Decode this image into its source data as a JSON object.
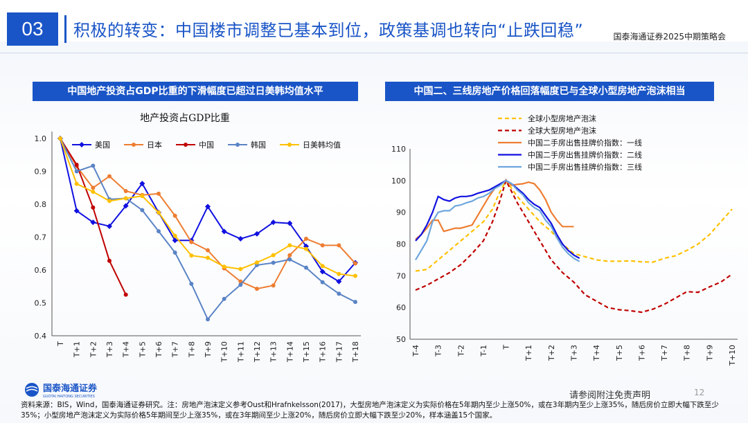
{
  "header": {
    "section_number": "03",
    "title": "积极的转变：中国楼市调整已基本到位，政策基调也转向“止跌回稳”",
    "report_name": "国泰海通证券2025中期策略会"
  },
  "colors": {
    "brand": "#1a55c7"
  },
  "left_panel": {
    "title": "中国地产投资占GDP比重的下滑幅度已超过日美韩均值水平"
  },
  "right_panel": {
    "title": "中国二、三线房地产价格回落幅度已与全球小型房地产泡沫相当"
  },
  "chart_data": [
    {
      "type": "line",
      "title": "地产投资占GDP比重",
      "categories": [
        "T",
        "T+1",
        "T+2",
        "T+3",
        "T+4",
        "T+5",
        "T+6",
        "T+7",
        "T+8",
        "T+9",
        "T+10",
        "T+11",
        "T+12",
        "T+13",
        "T+14",
        "T+15",
        "T+16",
        "T+17",
        "T+18"
      ],
      "ylim": [
        0.4,
        1.0
      ],
      "yticks": [
        "0.4",
        "0.5",
        "0.6",
        "0.7",
        "0.8",
        "0.9",
        "1.0"
      ],
      "legend_position": "top",
      "series": [
        {
          "name": "美国",
          "color": "#1010e0",
          "marker": "diamond",
          "values": [
            1.0,
            0.78,
            0.745,
            0.733,
            0.795,
            0.863,
            0.775,
            0.69,
            0.69,
            0.793,
            0.717,
            0.695,
            0.71,
            0.745,
            0.742,
            0.672,
            0.595,
            0.565,
            0.622
          ]
        },
        {
          "name": "日本",
          "color": "#ee7d31",
          "marker": "circle",
          "values": [
            1.0,
            0.915,
            0.85,
            0.885,
            0.84,
            0.828,
            0.832,
            0.765,
            0.685,
            0.66,
            0.605,
            0.565,
            0.543,
            0.553,
            0.645,
            0.695,
            0.675,
            0.675,
            0.62
          ]
        },
        {
          "name": "中国",
          "color": "#c00000",
          "marker": "circle",
          "values": [
            1.0,
            0.92,
            0.79,
            0.628,
            0.525,
            null,
            null,
            null,
            null,
            null,
            null,
            null,
            null,
            null,
            null,
            null,
            null,
            null,
            null
          ]
        },
        {
          "name": "韩国",
          "color": "#5a84c6",
          "marker": "circle",
          "values": [
            1.0,
            0.9,
            0.917,
            0.815,
            0.818,
            0.782,
            0.718,
            0.653,
            0.558,
            0.45,
            0.512,
            0.555,
            0.615,
            0.622,
            0.632,
            0.607,
            0.563,
            0.528,
            0.503
          ]
        },
        {
          "name": "日美韩均值",
          "color": "#ffc000",
          "marker": "circle",
          "values": [
            1.0,
            0.862,
            0.838,
            0.81,
            0.818,
            0.825,
            0.775,
            0.704,
            0.644,
            0.637,
            0.61,
            0.603,
            0.623,
            0.645,
            0.675,
            0.664,
            0.612,
            0.588,
            0.582
          ]
        }
      ]
    },
    {
      "type": "line",
      "categories": [
        "T-4",
        "T-3",
        "T-2",
        "T-1",
        "T",
        "T+1",
        "T+2",
        "T+3",
        "T+4",
        "T+5",
        "T+6",
        "T+7",
        "T+8",
        "T+9",
        "T+10"
      ],
      "ylim": [
        50,
        110
      ],
      "yticks": [
        "50",
        "60",
        "70",
        "80",
        "90",
        "100",
        "110"
      ],
      "legend_position": "top-left",
      "series": [
        {
          "name": "全球小型房地产泡沫",
          "color": "#ffc000",
          "dash": true,
          "x": [
            0,
            0.5,
            1,
            1.5,
            2,
            2.5,
            3,
            3.4,
            3.7,
            4,
            4.5,
            5,
            5.5,
            6,
            6.5,
            7,
            7.5,
            8,
            8.5,
            9,
            9.5,
            10,
            10.5,
            11,
            11.5,
            12,
            12.5,
            13,
            13.5,
            14
          ],
          "values": [
            71.5,
            72,
            75,
            78,
            81,
            84,
            87,
            91,
            96,
            100,
            95,
            91,
            87,
            84,
            80,
            77,
            76,
            75,
            74.6,
            74.6,
            74.7,
            74.4,
            74.3,
            75.5,
            76.3,
            78,
            80,
            83,
            87,
            91
          ]
        },
        {
          "name": "全球大型房地产泡沫",
          "color": "#c00000",
          "dash": true,
          "x": [
            0,
            0.5,
            1,
            1.5,
            2,
            2.5,
            3,
            3.4,
            3.7,
            4,
            4.5,
            5,
            5.5,
            6,
            6.5,
            7,
            7.5,
            8,
            8.5,
            9,
            9.5,
            10,
            10.5,
            11,
            11.5,
            12,
            12.5,
            13,
            13.5,
            14
          ],
          "values": [
            65.5,
            67,
            69,
            71,
            73.5,
            77,
            81,
            87,
            93,
            100,
            93,
            87,
            81,
            75,
            71,
            68,
            64,
            62,
            60,
            59.3,
            59,
            58.5,
            59.5,
            61,
            63,
            65,
            64.8,
            66.5,
            68,
            70.5
          ]
        },
        {
          "name": "中国二手房出售挂牌价指数：一线",
          "color": "#ee7d31",
          "dash": false,
          "x": [
            0,
            0.25,
            0.5,
            0.75,
            1,
            1.25,
            1.5,
            1.75,
            2,
            2.25,
            2.5,
            2.75,
            3,
            3.25,
            3.5,
            3.75,
            4,
            4.25,
            4.5,
            4.75,
            5,
            5.25,
            5.5,
            5.75,
            6,
            6.25,
            6.5,
            6.75,
            7,
            7.25,
            7.5
          ],
          "values": [
            81.5,
            83,
            85,
            87.5,
            87.5,
            84,
            84.5,
            85,
            85,
            85.5,
            86,
            89,
            92,
            95,
            97.5,
            99,
            100,
            98.5,
            98.8,
            99,
            99.5,
            99,
            97,
            94,
            90,
            87.5,
            85.5,
            85.5,
            85.5,
            null,
            null
          ]
        },
        {
          "name": "中国二手房出售挂牌价指数：二线",
          "color": "#1010e0",
          "dash": false,
          "x": [
            0,
            0.25,
            0.5,
            0.75,
            1,
            1.25,
            1.5,
            1.75,
            2,
            2.25,
            2.5,
            2.75,
            3,
            3.25,
            3.5,
            3.75,
            4,
            4.25,
            4.5,
            4.75,
            5,
            5.25,
            5.5,
            5.75,
            6,
            6.25,
            6.5,
            6.75,
            7,
            7.25,
            7.5
          ],
          "values": [
            81,
            83,
            86,
            90,
            95,
            94,
            93.5,
            94.5,
            95,
            95,
            95.3,
            96,
            96.5,
            97,
            98,
            99,
            100,
            99,
            97.5,
            96,
            94,
            92.5,
            91.5,
            89,
            86.5,
            83,
            80,
            78,
            76.5,
            75.5,
            null
          ]
        },
        {
          "name": "中国二手房出售挂牌价指数：三线",
          "color": "#6ea6dd",
          "dash": false,
          "x": [
            0,
            0.25,
            0.5,
            0.75,
            1,
            1.25,
            1.5,
            1.75,
            2,
            2.25,
            2.5,
            2.75,
            3,
            3.25,
            3.5,
            3.75,
            4,
            4.25,
            4.5,
            4.75,
            5,
            5.25,
            5.5,
            5.75,
            6,
            6.25,
            6.5,
            6.75,
            7,
            7.25,
            7.5
          ],
          "values": [
            75,
            78,
            81,
            87,
            90,
            90.5,
            90.5,
            92,
            92.3,
            93,
            93.5,
            94.5,
            95,
            96,
            97.5,
            98.5,
            100,
            99,
            97,
            95.5,
            93,
            91.5,
            90.5,
            87.5,
            85.5,
            82,
            79,
            77,
            75.5,
            74.5,
            null
          ]
        }
      ]
    }
  ],
  "footer": {
    "logo_text": "国泰海通证券",
    "logo_subtext": "GUOTAI HAITONG SECURITIES",
    "disclaimer": "请参阅附注免责声明",
    "page_number": "12",
    "source_note": "资料来源：BIS，Wind，国泰海通证券研究。注：房地产泡沫定义参考Oust和Hrafnkelsson(2017)，大型房地产泡沫定义为实际价格在5年期内至少上涨50%，或在3年期内至少上涨35%，随后房价立即大幅下跌至少35%；小型房地产泡沫定义为实际价格5年期间至少上涨35%，或在3年期间至少上涨20%，随后房价立即大幅下跌至少20%，样本涵盖15个国家。"
  }
}
